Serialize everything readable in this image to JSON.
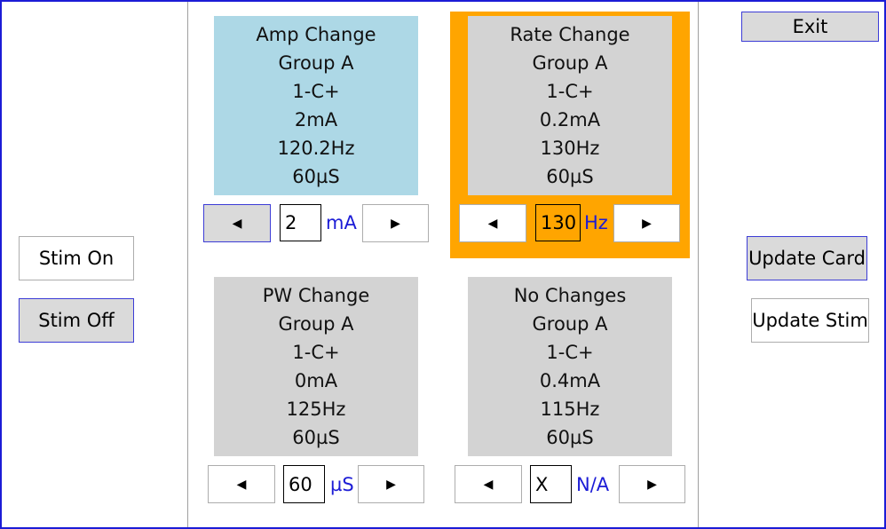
{
  "left_panel": {
    "stim_on_label": "Stim On",
    "stim_off_label": "Stim Off"
  },
  "right_panel": {
    "exit_label": "Exit",
    "update_card_label": "Update Card",
    "update_stim_label": "Update Stim"
  },
  "cards": [
    {
      "title": "Amp Change",
      "group": "Group A",
      "contact": "1-C+",
      "amplitude": "2mA",
      "rate": "120.2Hz",
      "pulse_width": "60µS",
      "stepper_value": "2",
      "stepper_unit": "mA",
      "background": "#add8e6"
    },
    {
      "title": "Rate Change",
      "group": "Group A",
      "contact": "1-C+",
      "amplitude": "0.2mA",
      "rate": "130Hz",
      "pulse_width": "60µS",
      "stepper_value": "130",
      "stepper_unit": "Hz",
      "background": "#d3d3d3",
      "selected": true,
      "highlight_color": "#ffa500"
    },
    {
      "title": "PW Change",
      "group": "Group A",
      "contact": "1-C+",
      "amplitude": "0mA",
      "rate": "125Hz",
      "pulse_width": "60µS",
      "stepper_value": "60",
      "stepper_unit": "µS",
      "background": "#d3d3d3"
    },
    {
      "title": "No Changes",
      "group": "Group A",
      "contact": "1-C+",
      "amplitude": "0.4mA",
      "rate": "115Hz",
      "pulse_width": "60µS",
      "stepper_value": "X",
      "stepper_unit": "N/A",
      "background": "#d3d3d3"
    }
  ],
  "icons": {
    "decrement": "left-triangle",
    "increment": "right-triangle"
  },
  "colors": {
    "window_border": "#1c1cd6",
    "unit_text": "#1c1cd6",
    "selected_highlight": "#ffa500"
  }
}
